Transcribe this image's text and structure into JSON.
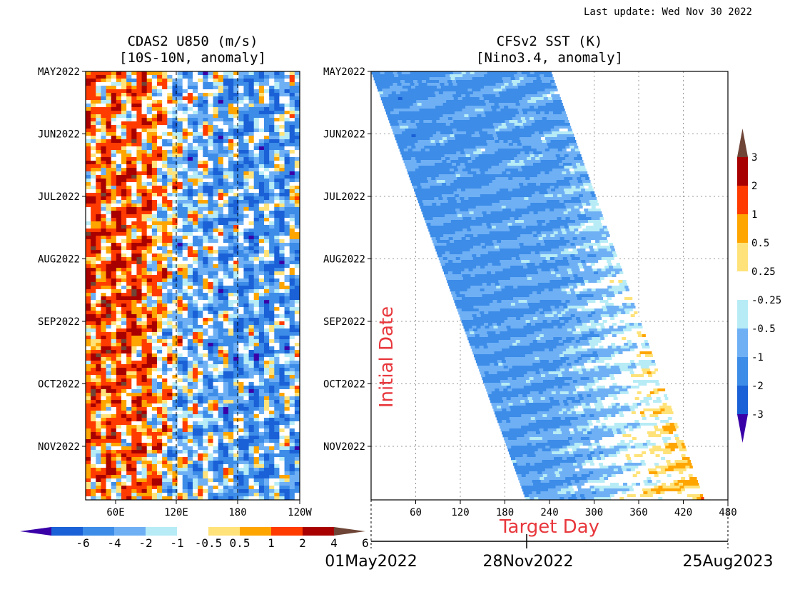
{
  "header": {
    "last_update": "Last update: Wed Nov 30 2022"
  },
  "chart_data": [
    {
      "type": "heatmap",
      "title": "CDAS2 U850 (m/s)",
      "subtitle": "[10S-10N, anomaly]",
      "y_ticks": [
        "MAY2022",
        "JUN2022",
        "JUL2022",
        "AUG2022",
        "SEP2022",
        "OCT2022",
        "NOV2022"
      ],
      "x_ticks": [
        "60E",
        "120E",
        "180",
        "120W"
      ],
      "x_range_deg_east": [
        30,
        240
      ],
      "dashed_reference_lines": [
        "120E",
        "180"
      ],
      "colorbar": {
        "orientation": "horizontal",
        "labels": [
          "-6",
          "-4",
          "-2",
          "-1",
          "-0.5",
          "0.5",
          "1",
          "2",
          "4",
          "6"
        ],
        "colors": [
          "#3a00a8",
          "#1a60d6",
          "#3c8ce8",
          "#6fb0f5",
          "#b7ecf6",
          "#ffffff",
          "#ffe37a",
          "#ffa500",
          "#ff3b00",
          "#a80000",
          "#6e4536"
        ]
      }
    },
    {
      "type": "heatmap",
      "title": "CFSv2 SST (K)",
      "subtitle": "[Nino3.4, anomaly]",
      "ylabel": "Initial Date",
      "xlabel": "Target Day",
      "y_ticks": [
        "MAY2022",
        "JUN2022",
        "JUL2022",
        "AUG2022",
        "SEP2022",
        "OCT2022",
        "NOV2022"
      ],
      "x_ticks": [
        "60",
        "120",
        "180",
        "240",
        "300",
        "360",
        "420",
        "480"
      ],
      "x_range": [
        0,
        480
      ],
      "date_axis": [
        "01May2022",
        "28Nov2022",
        "25Aug2023"
      ],
      "grid": true,
      "colorbar": {
        "orientation": "vertical",
        "labels": [
          "3",
          "2",
          "1",
          "0.5",
          "0.25",
          "-0.25",
          "-0.5",
          "-1",
          "-2",
          "-3"
        ],
        "colors": [
          "#6e4536",
          "#a80000",
          "#ff3b00",
          "#ffa500",
          "#ffe37a",
          "#ffffff",
          "#b7ecf6",
          "#6fb0f5",
          "#3c8ce8",
          "#1a60d6",
          "#3a00a8"
        ]
      }
    }
  ],
  "colors": {
    "annotation_red": "#e8383d"
  }
}
